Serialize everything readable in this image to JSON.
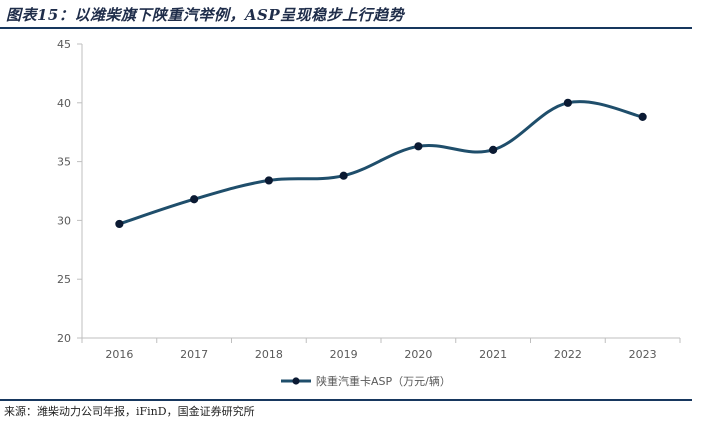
{
  "figure": {
    "title": "图表15：以潍柴旗下陕重汽举例，ASP呈现稳步上行趋势",
    "source": "来源：潍柴动力公司年报，iFinD，国金证券研究所"
  },
  "chart_data": {
    "type": "line",
    "x": [
      "2016",
      "2017",
      "2018",
      "2019",
      "2020",
      "2021",
      "2022",
      "2023"
    ],
    "series": [
      {
        "name": "陕重汽重卡ASP（万元/辆）",
        "values": [
          29.7,
          31.8,
          33.4,
          33.8,
          36.3,
          36.0,
          40.0,
          38.8
        ]
      }
    ],
    "y_ticks": [
      "20",
      "25",
      "30",
      "35",
      "40",
      "45"
    ],
    "ylim": [
      20,
      45
    ],
    "smooth": true,
    "markers": true,
    "grid": false,
    "legend_position": "bottom",
    "colors": {
      "line": "#1f4e6b",
      "marker": "#0b1a33",
      "axis": "#bfbfbf",
      "text": "#595959"
    }
  }
}
